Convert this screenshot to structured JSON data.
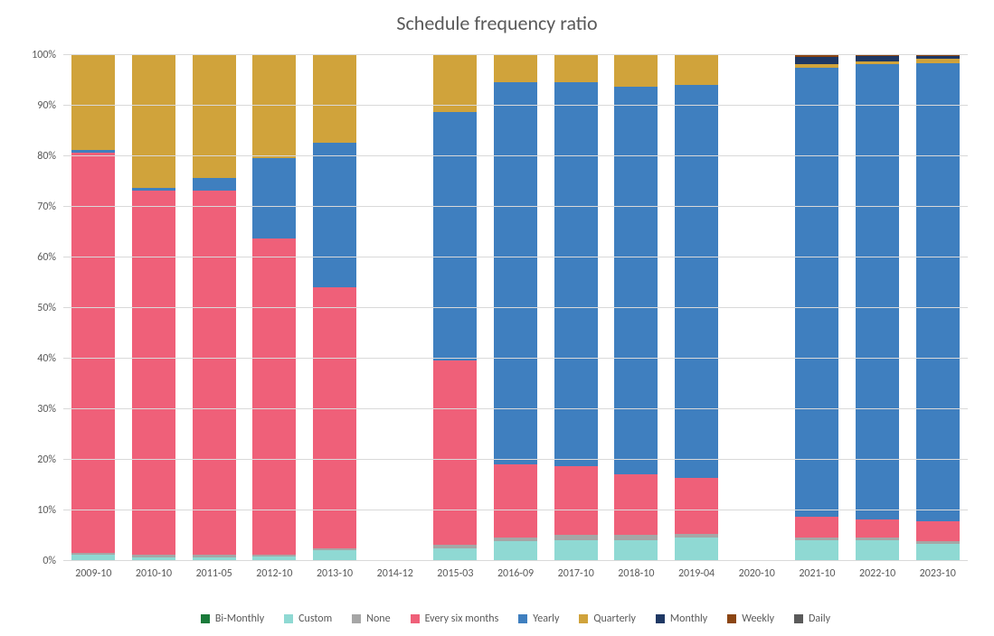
{
  "chart": {
    "type": "stacked-bar-100",
    "title": "Schedule frequency ratio",
    "title_fontsize": 22,
    "title_color": "#595959",
    "background_color": "#ffffff",
    "grid_color": "#d9d9d9",
    "label_color": "#595959",
    "label_fontsize": 12,
    "y": {
      "min": 0,
      "max": 100,
      "tick_step": 10,
      "tick_labels": [
        "0%",
        "10%",
        "20%",
        "30%",
        "40%",
        "50%",
        "60%",
        "70%",
        "80%",
        "90%",
        "100%"
      ]
    },
    "legend_order": [
      "bi_monthly",
      "custom",
      "none",
      "six_months",
      "yearly",
      "quarterly",
      "monthly",
      "weekly",
      "daily"
    ],
    "stack_order": [
      "bi_monthly",
      "custom",
      "none",
      "six_months",
      "yearly",
      "quarterly",
      "monthly",
      "weekly",
      "daily"
    ],
    "series": {
      "bi_monthly": {
        "label": "Bi-Monthly",
        "color": "#1a7a3a"
      },
      "custom": {
        "label": "Custom",
        "color": "#8fd9d3"
      },
      "none": {
        "label": "None",
        "color": "#a6a6a6"
      },
      "six_months": {
        "label": "Every six months",
        "color": "#ef6079"
      },
      "yearly": {
        "label": "Yearly",
        "color": "#3f7fbf"
      },
      "quarterly": {
        "label": "Quarterly",
        "color": "#d0a33b"
      },
      "monthly": {
        "label": "Monthly",
        "color": "#1f3864"
      },
      "weekly": {
        "label": "Weekly",
        "color": "#8b4513"
      },
      "daily": {
        "label": "Daily",
        "color": "#5a5a5a"
      }
    },
    "categories": [
      "2009-10",
      "2010-10",
      "2011-05",
      "2012-10",
      "2013-10",
      "2014-12",
      "2015-03",
      "2016-09",
      "2017-10",
      "2018-10",
      "2019-04",
      "2020-10",
      "2021-10",
      "2022-10",
      "2023-10"
    ],
    "data": [
      {
        "bi_monthly": 0,
        "custom": 1.0,
        "none": 0.5,
        "six_months": 79.0,
        "yearly": 0.5,
        "quarterly": 19.0,
        "monthly": 0,
        "weekly": 0,
        "daily": 0
      },
      {
        "bi_monthly": 0,
        "custom": 0.6,
        "none": 0.4,
        "six_months": 72.0,
        "yearly": 0.5,
        "quarterly": 26.5,
        "monthly": 0,
        "weekly": 0,
        "daily": 0
      },
      {
        "bi_monthly": 0,
        "custom": 0.6,
        "none": 0.4,
        "six_months": 72.0,
        "yearly": 2.5,
        "quarterly": 24.5,
        "monthly": 0,
        "weekly": 0,
        "daily": 0
      },
      {
        "bi_monthly": 0,
        "custom": 0.7,
        "none": 0.3,
        "six_months": 62.5,
        "yearly": 16.0,
        "quarterly": 20.5,
        "monthly": 0,
        "weekly": 0,
        "daily": 0
      },
      {
        "bi_monthly": 0,
        "custom": 2.0,
        "none": 0.3,
        "six_months": 51.7,
        "yearly": 28.5,
        "quarterly": 17.5,
        "monthly": 0,
        "weekly": 0,
        "daily": 0
      },
      null,
      {
        "bi_monthly": 0,
        "custom": 2.3,
        "none": 0.7,
        "six_months": 36.5,
        "yearly": 49.0,
        "quarterly": 11.5,
        "monthly": 0,
        "weekly": 0,
        "daily": 0
      },
      {
        "bi_monthly": 0,
        "custom": 3.8,
        "none": 0.7,
        "six_months": 14.5,
        "yearly": 75.5,
        "quarterly": 5.5,
        "monthly": 0,
        "weekly": 0,
        "daily": 0
      },
      {
        "bi_monthly": 0,
        "custom": 4.0,
        "none": 1.0,
        "six_months": 13.5,
        "yearly": 76.0,
        "quarterly": 5.5,
        "monthly": 0,
        "weekly": 0,
        "daily": 0
      },
      {
        "bi_monthly": 0,
        "custom": 4.0,
        "none": 1.0,
        "six_months": 12.0,
        "yearly": 76.5,
        "quarterly": 6.5,
        "monthly": 0,
        "weekly": 0,
        "daily": 0
      },
      {
        "bi_monthly": 0,
        "custom": 4.5,
        "none": 0.7,
        "six_months": 11.0,
        "yearly": 77.8,
        "quarterly": 6.0,
        "monthly": 0,
        "weekly": 0,
        "daily": 0
      },
      null,
      {
        "bi_monthly": 0,
        "custom": 4.0,
        "none": 0.5,
        "six_months": 4.0,
        "yearly": 88.8,
        "quarterly": 0.7,
        "monthly": 1.5,
        "weekly": 0.3,
        "daily": 0.2
      },
      {
        "bi_monthly": 0,
        "custom": 4.0,
        "none": 0.5,
        "six_months": 3.5,
        "yearly": 90.0,
        "quarterly": 0.6,
        "monthly": 1.0,
        "weekly": 0.2,
        "daily": 0.2
      },
      {
        "bi_monthly": 0,
        "custom": 3.2,
        "none": 0.5,
        "six_months": 4.0,
        "yearly": 90.5,
        "quarterly": 1.0,
        "monthly": 0.4,
        "weekly": 0.2,
        "daily": 0.2
      }
    ]
  }
}
